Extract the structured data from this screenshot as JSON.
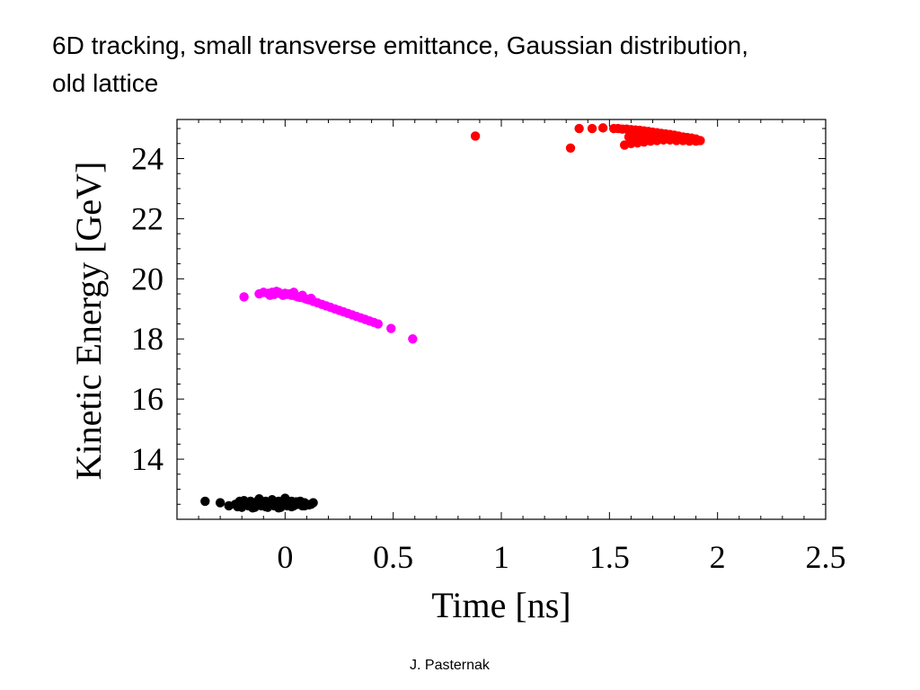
{
  "slide": {
    "title_line1": "6D tracking, small transverse emittance, Gaussian distribution,",
    "title_line2": "old lattice",
    "footer": "J. Pasternak"
  },
  "chart_data": {
    "type": "scatter",
    "title": "",
    "xlabel": "Time [ns]",
    "ylabel": "Kinetic Energy [GeV]",
    "xlim": [
      -0.5,
      2.5
    ],
    "ylim": [
      12.0,
      25.3
    ],
    "xticks": [
      0,
      0.5,
      1,
      1.5,
      2,
      2.5
    ],
    "xtick_labels": [
      "0",
      "0.5",
      "1",
      "1.5",
      "2",
      "2.5"
    ],
    "yticks": [
      14,
      16,
      18,
      20,
      22,
      24
    ],
    "ytick_labels": [
      "14",
      "16",
      "18",
      "20",
      "22",
      "24"
    ],
    "grid": false,
    "legend": "none",
    "series": [
      {
        "color": "#000000",
        "x": [
          -0.37,
          -0.3,
          -0.26,
          -0.23,
          -0.21,
          -0.2,
          -0.18,
          -0.17,
          -0.16,
          -0.15,
          -0.14,
          -0.13,
          -0.12,
          -0.11,
          -0.1,
          -0.09,
          -0.08,
          -0.07,
          -0.06,
          -0.05,
          -0.04,
          -0.03,
          -0.02,
          -0.01,
          0.0,
          0.01,
          0.02,
          0.03,
          0.04,
          0.05,
          0.06,
          0.07,
          0.08,
          0.09,
          0.1,
          0.12,
          0.13,
          -0.22,
          -0.19,
          -0.15,
          -0.12,
          -0.09,
          -0.06,
          -0.03,
          0.0,
          0.03,
          0.06,
          0.09,
          -0.2,
          -0.16,
          -0.13,
          -0.1,
          -0.07,
          -0.04,
          -0.01,
          0.02,
          0.05,
          0.08,
          0.11
        ],
        "y": [
          12.6,
          12.55,
          12.45,
          12.5,
          12.6,
          12.4,
          12.55,
          12.45,
          12.6,
          12.5,
          12.4,
          12.55,
          12.65,
          12.45,
          12.5,
          12.6,
          12.4,
          12.55,
          12.65,
          12.45,
          12.5,
          12.6,
          12.4,
          12.55,
          12.7,
          12.45,
          12.5,
          12.6,
          12.45,
          12.55,
          12.5,
          12.6,
          12.45,
          12.55,
          12.5,
          12.5,
          12.55,
          12.42,
          12.62,
          12.38,
          12.68,
          12.42,
          12.62,
          12.38,
          12.62,
          12.42,
          12.58,
          12.45,
          12.52,
          12.48,
          12.58,
          12.52,
          12.48,
          12.58,
          12.52,
          12.48,
          12.58,
          12.52,
          12.48
        ]
      },
      {
        "color": "#ff00ff",
        "x": [
          -0.19,
          -0.12,
          -0.1,
          -0.08,
          -0.06,
          -0.05,
          -0.03,
          -0.02,
          0.0,
          0.01,
          0.03,
          0.05,
          0.07,
          0.09,
          0.11,
          0.13,
          0.15,
          0.17,
          0.19,
          0.21,
          0.23,
          0.25,
          0.27,
          0.29,
          0.31,
          0.33,
          0.35,
          0.37,
          0.39,
          0.41,
          0.43,
          0.49,
          0.59,
          -0.07,
          -0.04,
          -0.01,
          0.02,
          0.04,
          0.06,
          0.08,
          0.1,
          0.12
        ],
        "y": [
          19.4,
          19.5,
          19.55,
          19.52,
          19.55,
          19.48,
          19.55,
          19.5,
          19.52,
          19.48,
          19.45,
          19.42,
          19.38,
          19.35,
          19.3,
          19.25,
          19.2,
          19.15,
          19.1,
          19.05,
          19.0,
          18.95,
          18.9,
          18.85,
          18.8,
          18.75,
          18.7,
          18.65,
          18.6,
          18.55,
          18.5,
          18.35,
          18.0,
          19.45,
          19.58,
          19.45,
          19.5,
          19.55,
          19.4,
          19.45,
          19.32,
          19.35
        ]
      },
      {
        "color": "#ff0000",
        "x": [
          0.88,
          1.32,
          1.36,
          1.42,
          1.47,
          1.52,
          1.54,
          1.56,
          1.58,
          1.6,
          1.62,
          1.64,
          1.66,
          1.68,
          1.7,
          1.72,
          1.74,
          1.76,
          1.78,
          1.8,
          1.82,
          1.84,
          1.86,
          1.88,
          1.9,
          1.92,
          1.57,
          1.6,
          1.63,
          1.66,
          1.69,
          1.72,
          1.75,
          1.78,
          1.81,
          1.84,
          1.87,
          1.9,
          1.59,
          1.62,
          1.65,
          1.68,
          1.71,
          1.74,
          1.77,
          1.8,
          1.83,
          1.86,
          1.89
        ],
        "y": [
          24.75,
          24.35,
          25.0,
          25.0,
          25.02,
          25.0,
          25.0,
          24.98,
          24.98,
          24.96,
          24.95,
          24.94,
          24.92,
          24.9,
          24.88,
          24.86,
          24.84,
          24.82,
          24.8,
          24.78,
          24.75,
          24.72,
          24.7,
          24.68,
          24.65,
          24.6,
          24.45,
          24.5,
          24.52,
          24.55,
          24.58,
          24.6,
          24.62,
          24.62,
          24.6,
          24.6,
          24.58,
          24.58,
          24.72,
          24.75,
          24.78,
          24.76,
          24.72,
          24.7,
          24.68,
          24.72,
          24.7,
          24.65,
          24.62
        ]
      }
    ]
  }
}
